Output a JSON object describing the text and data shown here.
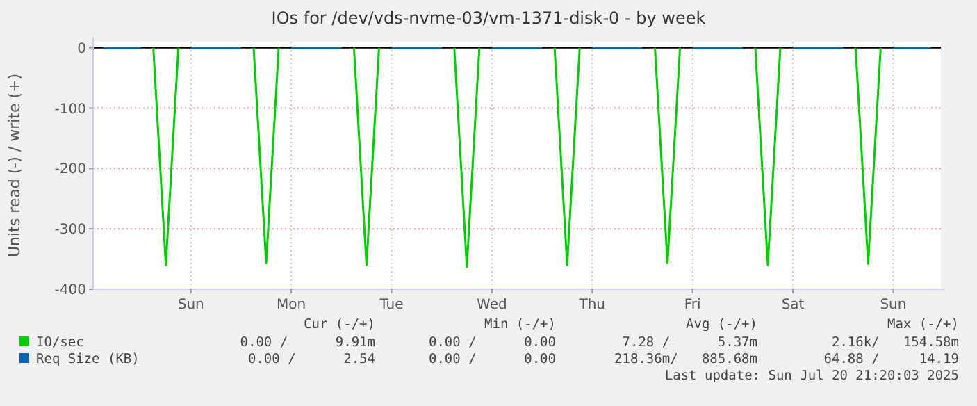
{
  "chart_data": {
    "type": "line",
    "title": "IOs for /dev/vds-nvme-03/vm-1371-disk-0 - by week",
    "ylabel": "Units read (-) / write (+)",
    "categories": [
      null,
      null,
      null,
      null,
      null,
      null,
      null,
      "Sun",
      null,
      null,
      null,
      null,
      null,
      null,
      null,
      "Mon",
      null,
      null,
      null,
      null,
      null,
      null,
      null,
      "Tue",
      null,
      null,
      null,
      null,
      null,
      null,
      null,
      "Wed",
      null,
      null,
      null,
      null,
      null,
      null,
      null,
      "Thu",
      null,
      null,
      null,
      null,
      null,
      null,
      null,
      "Fri",
      null,
      null,
      null,
      null,
      null,
      null,
      null,
      "Sat",
      null,
      null,
      null,
      null,
      null,
      null,
      null,
      "Sun",
      null,
      null,
      null
    ],
    "ylim": [
      -400,
      10
    ],
    "yticks": [
      0,
      -100,
      -200,
      -300,
      -400
    ],
    "grid": true,
    "legend": "bottom",
    "ref_lines": [
      {
        "axis": "y",
        "value": 0,
        "color": "#000000"
      }
    ],
    "series": [
      {
        "name": "IO/sec",
        "color": "#00cc00",
        "values": [
          null,
          null,
          null,
          null,
          0,
          -360,
          0,
          null,
          null,
          null,
          null,
          null,
          0,
          -357,
          0,
          null,
          null,
          null,
          null,
          null,
          0,
          -360,
          0,
          null,
          null,
          null,
          null,
          null,
          0,
          -363,
          0,
          null,
          null,
          null,
          null,
          null,
          0,
          -360,
          0,
          null,
          null,
          null,
          null,
          null,
          0,
          -357,
          0,
          null,
          null,
          null,
          null,
          null,
          0,
          -360,
          0,
          null,
          null,
          null,
          null,
          null,
          0,
          -358,
          0,
          null,
          null,
          null,
          null
        ]
      },
      {
        "name": "Req Size (KB)",
        "color": "#0066b3",
        "values": [
          0,
          0,
          0,
          0,
          null,
          null,
          null,
          0,
          0,
          0,
          0,
          0,
          null,
          null,
          null,
          0,
          0,
          0,
          0,
          0,
          null,
          null,
          null,
          0,
          0,
          0,
          0,
          0,
          null,
          null,
          null,
          0,
          0,
          0,
          0,
          0,
          null,
          null,
          null,
          0,
          0,
          0,
          0,
          0,
          null,
          null,
          null,
          0,
          0,
          0,
          0,
          0,
          null,
          null,
          null,
          0,
          0,
          0,
          0,
          0,
          null,
          null,
          null,
          0,
          0,
          0,
          0
        ]
      }
    ],
    "annotations": [
      "Cur (-/+)",
      "Min (-/+)",
      "Avg (-/+)",
      "Max (-/+)",
      "0.00 /      9.91m",
      "0.00 /      0.00",
      "7.28 /      5.37m",
      "2.16k/   154.58m",
      "0.00 /      2.54",
      "0.00 /      0.00",
      "218.36m/   885.68m",
      "64.88 /     14.19",
      "Last update: Sun Jul 20 21:20:03 2025"
    ]
  }
}
